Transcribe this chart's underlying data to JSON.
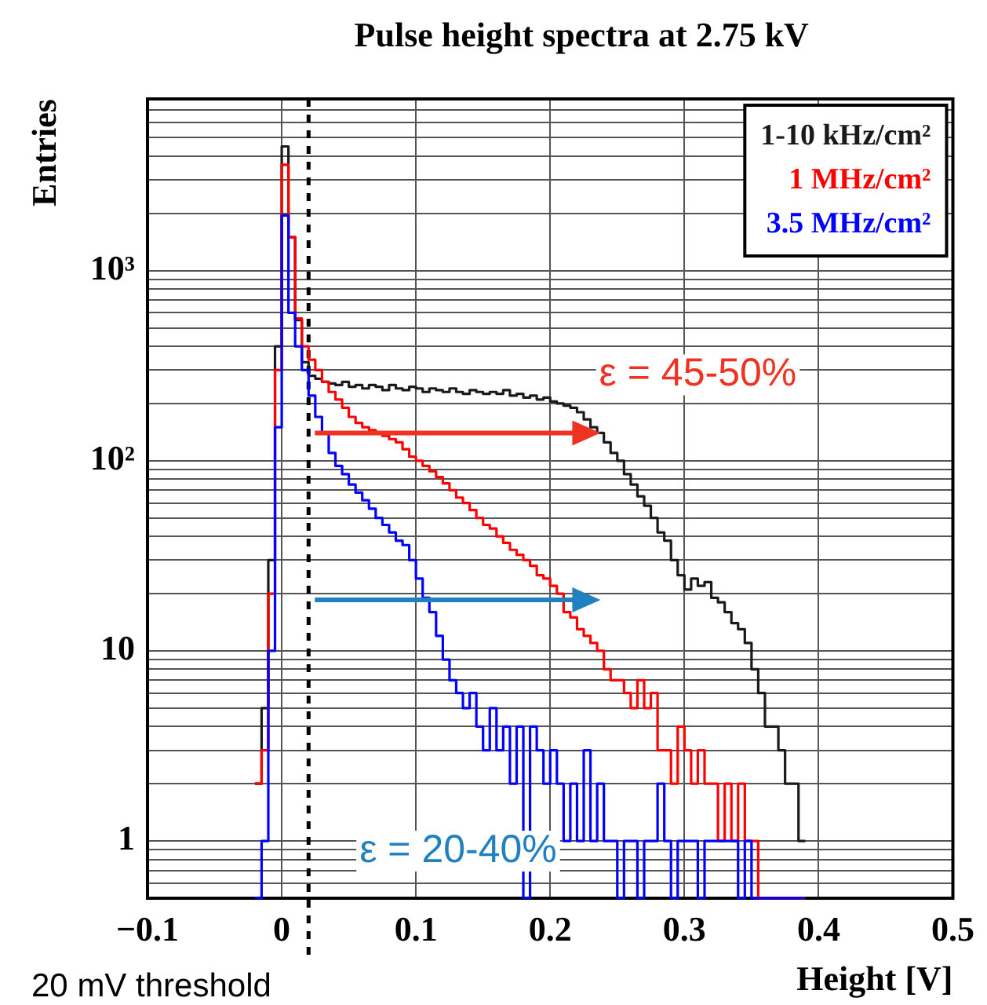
{
  "chart_data": {
    "type": "histogram",
    "title": "Pulse height spectra at 2.75 kV",
    "xlabel": "Height [V]",
    "ylabel": "Entries",
    "bins": [
      -0.02,
      -0.015,
      -0.01,
      -0.005,
      0,
      0.005,
      0.01,
      0.015,
      0.02,
      0.025,
      0.03,
      0.035,
      0.04,
      0.045,
      0.05,
      0.055,
      0.06,
      0.065,
      0.07,
      0.075,
      0.08,
      0.085,
      0.09,
      0.095,
      0.1,
      0.105,
      0.11,
      0.115,
      0.12,
      0.125,
      0.13,
      0.135,
      0.14,
      0.145,
      0.15,
      0.155,
      0.16,
      0.165,
      0.17,
      0.175,
      0.18,
      0.185,
      0.19,
      0.195,
      0.2,
      0.205,
      0.21,
      0.215,
      0.22,
      0.225,
      0.23,
      0.235,
      0.24,
      0.245,
      0.25,
      0.255,
      0.26,
      0.265,
      0.27,
      0.275,
      0.28,
      0.285,
      0.29,
      0.295,
      0.3,
      0.305,
      0.31,
      0.315,
      0.32,
      0.325,
      0.33,
      0.335,
      0.34,
      0.345,
      0.35,
      0.355,
      0.36,
      0.365,
      0.37,
      0.375,
      0.38,
      0.385,
      0.39
    ],
    "series": [
      {
        "name": "1-10 kHz/cm²",
        "color": "#1a1a1a",
        "values": [
          2,
          5,
          30,
          400,
          4500,
          1500,
          550,
          330,
          280,
          270,
          260,
          255,
          250,
          260,
          245,
          250,
          240,
          250,
          245,
          235,
          250,
          240,
          235,
          245,
          240,
          230,
          240,
          235,
          230,
          240,
          230,
          225,
          235,
          230,
          225,
          230,
          225,
          235,
          220,
          225,
          215,
          220,
          210,
          215,
          205,
          200,
          195,
          190,
          180,
          165,
          150,
          140,
          125,
          110,
          100,
          85,
          75,
          65,
          58,
          50,
          42,
          38,
          30,
          25,
          21,
          24,
          22,
          23,
          19,
          18,
          16,
          14,
          13,
          11,
          8,
          6,
          4,
          4,
          3,
          2,
          2,
          1
        ]
      },
      {
        "name": "1 MHz/cm²",
        "color": "#ff0000",
        "values": [
          2,
          3,
          20,
          300,
          3600,
          1500,
          560,
          400,
          340,
          300,
          260,
          230,
          210,
          190,
          170,
          158,
          150,
          145,
          140,
          135,
          130,
          125,
          115,
          105,
          100,
          94,
          88,
          82,
          76,
          70,
          64,
          60,
          55,
          50,
          46,
          44,
          40,
          37,
          34,
          32,
          30,
          28,
          25,
          24,
          22,
          20,
          16,
          15,
          13,
          12,
          11,
          10,
          8,
          7,
          7,
          6,
          5,
          7,
          5,
          6,
          3,
          3,
          2,
          4,
          3,
          2,
          3,
          2,
          2,
          1,
          2,
          1,
          2,
          1,
          1,
          null,
          null,
          null,
          null,
          null,
          null,
          null
        ]
      },
      {
        "name": "3.5 MHz/cm²",
        "color": "#0000ff",
        "values": [
          null,
          1,
          10,
          150,
          1950,
          600,
          400,
          300,
          220,
          170,
          140,
          110,
          94,
          85,
          75,
          68,
          62,
          56,
          50,
          46,
          42,
          38,
          36,
          30,
          24,
          19,
          16,
          12,
          9,
          7,
          6,
          5,
          6,
          4,
          3,
          5,
          3,
          4,
          2,
          4,
          null,
          4,
          3,
          2,
          3,
          2,
          1,
          2,
          1,
          3,
          1,
          2,
          1,
          1,
          null,
          1,
          1,
          null,
          1,
          1,
          2,
          1,
          null,
          1,
          1,
          1,
          null,
          1,
          1,
          1,
          1,
          1,
          null,
          1,
          null,
          null,
          null,
          null,
          null,
          null,
          null,
          null
        ]
      }
    ],
    "xlim": [
      -0.1,
      0.5
    ],
    "xticks": [
      {
        "value": -0.1,
        "label": "−0.1"
      },
      0,
      0.1,
      0.2,
      0.3,
      0.4,
      0.5
    ],
    "ylim": [
      0.5,
      8000
    ],
    "yticks": [
      {
        "value": 0.5,
        "label": null
      },
      {
        "value": 0.6,
        "label": null
      },
      {
        "value": 0.7,
        "label": null
      },
      {
        "value": 0.8,
        "label": null
      },
      {
        "value": 0.9,
        "label": null
      },
      1,
      {
        "value": 2,
        "label": null
      },
      {
        "value": 3,
        "label": null
      },
      {
        "value": 4,
        "label": null
      },
      {
        "value": 5,
        "label": null
      },
      {
        "value": 6,
        "label": null
      },
      {
        "value": 7,
        "label": null
      },
      {
        "value": 8,
        "label": null
      },
      {
        "value": 9,
        "label": null
      },
      10,
      {
        "value": 20,
        "label": null
      },
      {
        "value": 30,
        "label": null
      },
      {
        "value": 40,
        "label": null
      },
      {
        "value": 50,
        "label": null
      },
      {
        "value": 60,
        "label": null
      },
      {
        "value": 70,
        "label": null
      },
      {
        "value": 80,
        "label": null
      },
      {
        "value": 90,
        "label": null
      },
      {
        "value": 100,
        "label": "10²"
      },
      {
        "value": 200,
        "label": null
      },
      {
        "value": 300,
        "label": null
      },
      {
        "value": 400,
        "label": null
      },
      {
        "value": 500,
        "label": null
      },
      {
        "value": 600,
        "label": null
      },
      {
        "value": 700,
        "label": null
      },
      {
        "value": 800,
        "label": null
      },
      {
        "value": 900,
        "label": null
      },
      {
        "value": 1000,
        "label": "10³"
      },
      {
        "value": 2000,
        "label": null
      },
      {
        "value": 3000,
        "label": null
      },
      {
        "value": 4000,
        "label": null
      },
      {
        "value": 5000,
        "label": null
      },
      {
        "value": 6000,
        "label": null
      },
      {
        "value": 7000,
        "label": null
      },
      {
        "value": 8000,
        "label": null
      }
    ],
    "log": true,
    "grid": true,
    "ref_lines": [
      {
        "axis": "x",
        "value": 0.02,
        "label": "20 mV threshold",
        "color": "#000000",
        "line_style": "dashed"
      }
    ],
    "annotations": [
      {
        "text": "ε = 45-50%",
        "x": 0.2375,
        "y": 140
      },
      "ε = 20-40%"
    ]
  }
}
